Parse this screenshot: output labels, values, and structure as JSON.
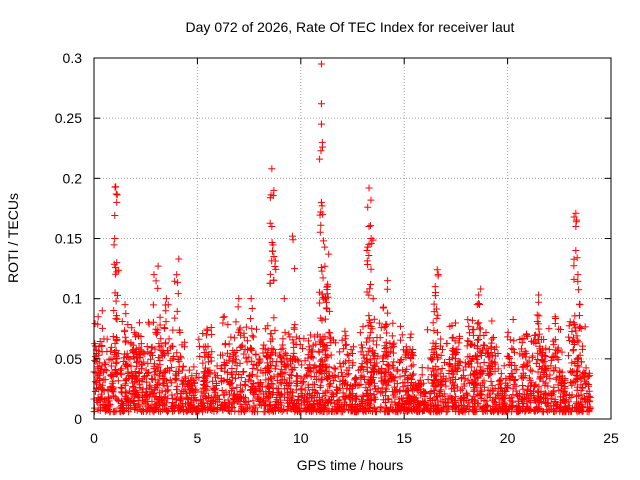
{
  "chart_data": {
    "type": "scatter",
    "title": "Day 072 of 2026, Rate Of TEC Index for receiver laut",
    "xlabel": "GPS time / hours",
    "ylabel": "ROTI / TECUs",
    "xlim": [
      0,
      25
    ],
    "ylim": [
      0,
      0.3
    ],
    "x_ticks": [
      "0",
      "5",
      "10",
      "15",
      "20",
      "25"
    ],
    "y_ticks": [
      "0",
      "0.05",
      "0.1",
      "0.15",
      "0.2",
      "0.25",
      "0.3"
    ],
    "grid": true,
    "marker": "+",
    "series": [
      {
        "name": "ROTI",
        "color": "#ff0000",
        "baseline_max": 0.04,
        "peaks": [
          {
            "x": 0.2,
            "y": 0.085
          },
          {
            "x": 0.4,
            "y": 0.09
          },
          {
            "x": 1.05,
            "y": 0.193
          },
          {
            "x": 1.1,
            "y": 0.18
          },
          {
            "x": 1.0,
            "y": 0.15
          },
          {
            "x": 1.1,
            "y": 0.13
          },
          {
            "x": 1.5,
            "y": 0.095
          },
          {
            "x": 2.2,
            "y": 0.08
          },
          {
            "x": 2.9,
            "y": 0.12
          },
          {
            "x": 3.1,
            "y": 0.127
          },
          {
            "x": 3.5,
            "y": 0.1
          },
          {
            "x": 4.1,
            "y": 0.133
          },
          {
            "x": 4.0,
            "y": 0.12
          },
          {
            "x": 5.4,
            "y": 0.06
          },
          {
            "x": 6.3,
            "y": 0.085
          },
          {
            "x": 7.0,
            "y": 0.1
          },
          {
            "x": 7.6,
            "y": 0.1
          },
          {
            "x": 8.3,
            "y": 0.075
          },
          {
            "x": 8.6,
            "y": 0.208
          },
          {
            "x": 8.7,
            "y": 0.19
          },
          {
            "x": 8.6,
            "y": 0.16
          },
          {
            "x": 8.7,
            "y": 0.135
          },
          {
            "x": 9.2,
            "y": 0.1
          },
          {
            "x": 9.6,
            "y": 0.152
          },
          {
            "x": 9.7,
            "y": 0.125
          },
          {
            "x": 10.4,
            "y": 0.06
          },
          {
            "x": 11.0,
            "y": 0.295
          },
          {
            "x": 11.0,
            "y": 0.262
          },
          {
            "x": 11.0,
            "y": 0.245
          },
          {
            "x": 11.05,
            "y": 0.226
          },
          {
            "x": 11.0,
            "y": 0.18
          },
          {
            "x": 11.1,
            "y": 0.148
          },
          {
            "x": 11.35,
            "y": 0.137
          },
          {
            "x": 11.3,
            "y": 0.112
          },
          {
            "x": 11.2,
            "y": 0.1
          },
          {
            "x": 12.2,
            "y": 0.062
          },
          {
            "x": 13.3,
            "y": 0.192
          },
          {
            "x": 13.3,
            "y": 0.16
          },
          {
            "x": 13.4,
            "y": 0.15
          },
          {
            "x": 13.2,
            "y": 0.14
          },
          {
            "x": 13.5,
            "y": 0.1
          },
          {
            "x": 13.4,
            "y": 0.077
          },
          {
            "x": 14.2,
            "y": 0.115
          },
          {
            "x": 14.0,
            "y": 0.093
          },
          {
            "x": 14.1,
            "y": 0.077
          },
          {
            "x": 15.1,
            "y": 0.06
          },
          {
            "x": 16.6,
            "y": 0.124
          },
          {
            "x": 16.5,
            "y": 0.11
          },
          {
            "x": 16.4,
            "y": 0.08
          },
          {
            "x": 17.4,
            "y": 0.056
          },
          {
            "x": 18.3,
            "y": 0.082
          },
          {
            "x": 18.7,
            "y": 0.108
          },
          {
            "x": 18.6,
            "y": 0.096
          },
          {
            "x": 18.6,
            "y": 0.08
          },
          {
            "x": 19.2,
            "y": 0.06
          },
          {
            "x": 20.3,
            "y": 0.065
          },
          {
            "x": 20.7,
            "y": 0.067
          },
          {
            "x": 21.5,
            "y": 0.103
          },
          {
            "x": 21.5,
            "y": 0.097
          },
          {
            "x": 22.3,
            "y": 0.085
          },
          {
            "x": 23.3,
            "y": 0.171
          },
          {
            "x": 23.3,
            "y": 0.16
          },
          {
            "x": 23.3,
            "y": 0.14
          },
          {
            "x": 23.4,
            "y": 0.12
          },
          {
            "x": 23.2,
            "y": 0.08
          },
          {
            "x": 23.5,
            "y": 0.095
          }
        ]
      }
    ]
  }
}
